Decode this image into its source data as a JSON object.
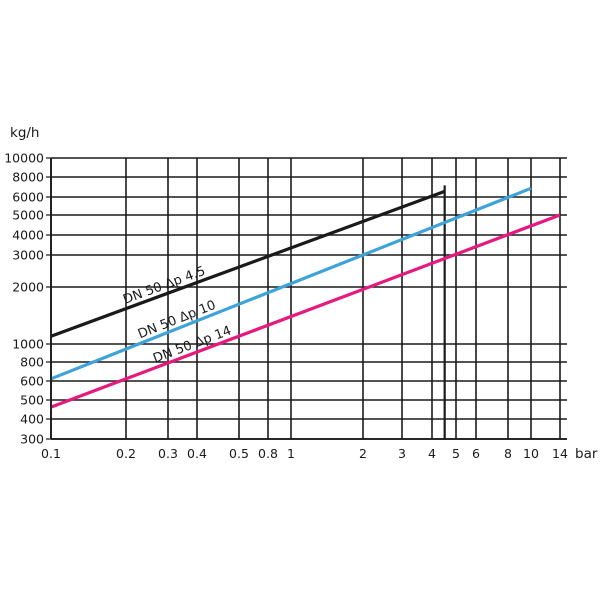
{
  "chart_data": {
    "type": "line",
    "title": "",
    "xlabel": "bar",
    "ylabel": "kg/h",
    "x_scale": "log",
    "y_scale": "log",
    "xlim": [
      0.1,
      14
    ],
    "ylim": [
      300,
      10000
    ],
    "grid": true,
    "x_ticks": [
      "0.1",
      "0.2",
      "0.3",
      "0.4",
      "0.5",
      "0.8",
      "1",
      "2",
      "3",
      "4",
      "5",
      "6",
      "8",
      "10",
      "14"
    ],
    "y_ticks": [
      "300",
      "400",
      "500",
      "600",
      "800",
      "1000",
      "2000",
      "3000",
      "4000",
      "5000",
      "6000",
      "8000",
      "10000"
    ],
    "series": [
      {
        "name": "DN 50 Δp 4.5",
        "color": "#1a1a1a",
        "x": [
          0.1,
          4.5
        ],
        "y": [
          1100,
          6500
        ]
      },
      {
        "name": "DN 50 Δp 10",
        "color": "#3ea3d8",
        "x": [
          0.1,
          10
        ],
        "y": [
          620,
          6800
        ]
      },
      {
        "name": "DN 50 Δp 14",
        "color": "#e6197e",
        "x": [
          0.1,
          14
        ],
        "y": [
          460,
          5000
        ]
      }
    ]
  }
}
